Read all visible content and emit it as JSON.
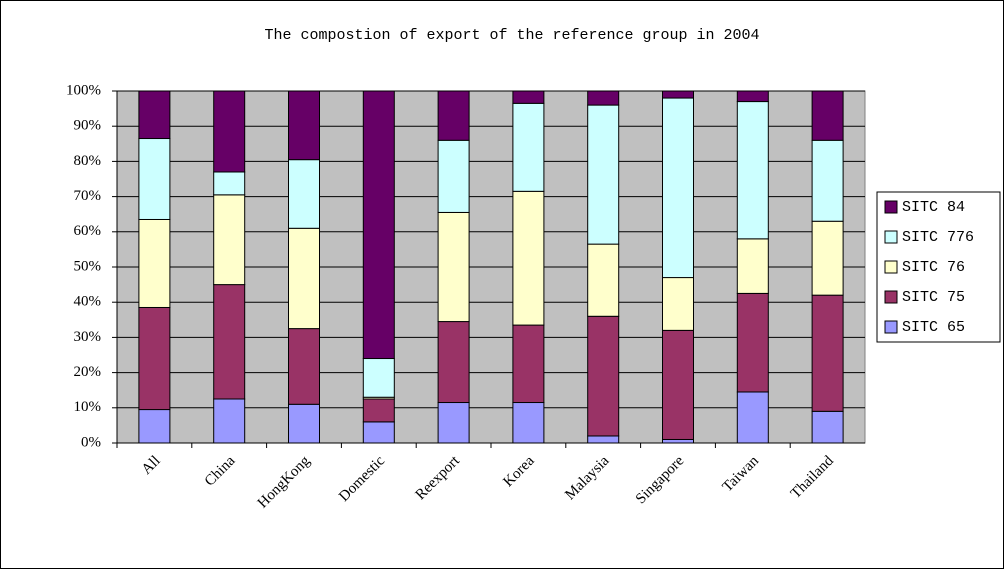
{
  "chart_data": {
    "type": "stacked_bar",
    "title": "The compostion of export of the reference group in 2004",
    "categories": [
      "All",
      "China",
      "HongKong",
      "Domestic",
      "Reexport",
      "Korea",
      "Malaysia",
      "Singapore",
      "Taiwan",
      "Thailand"
    ],
    "series": [
      {
        "name": "SITC 65",
        "color": "#9999ff",
        "values": [
          9.5,
          12.5,
          11,
          6,
          11.5,
          11.5,
          2,
          1,
          14.5,
          9
        ]
      },
      {
        "name": "SITC 75",
        "color": "#993366",
        "values": [
          29,
          32.5,
          21.5,
          6.5,
          23,
          22,
          34,
          31,
          28,
          33
        ]
      },
      {
        "name": "SITC 76",
        "color": "#ffffcc",
        "values": [
          25,
          25.5,
          28.5,
          0.5,
          31,
          38,
          20.5,
          15,
          15.5,
          21
        ]
      },
      {
        "name": "SITC 776",
        "color": "#ccffff",
        "values": [
          23,
          6.5,
          19.5,
          11,
          20.5,
          25,
          39.5,
          51,
          39,
          23
        ]
      },
      {
        "name": "SITC 84",
        "color": "#660066",
        "values": [
          13.5,
          23,
          19.5,
          76,
          14,
          3.5,
          4,
          2,
          3,
          14
        ]
      }
    ],
    "ylim": [
      0,
      100
    ],
    "yticks": [
      {
        "value": 0,
        "label": "0%"
      },
      {
        "value": 10,
        "label": "10%"
      },
      {
        "value": 20,
        "label": "20%"
      },
      {
        "value": 30,
        "label": "30%"
      },
      {
        "value": 40,
        "label": "40%"
      },
      {
        "value": 50,
        "label": "50%"
      },
      {
        "value": 60,
        "label": "60%"
      },
      {
        "value": 70,
        "label": "70%"
      },
      {
        "value": 80,
        "label": "80%"
      },
      {
        "value": 90,
        "label": "90%"
      },
      {
        "value": 100,
        "label": "100%"
      }
    ],
    "grid": true,
    "legend": "right",
    "plot_background": "#c0c0c0"
  }
}
